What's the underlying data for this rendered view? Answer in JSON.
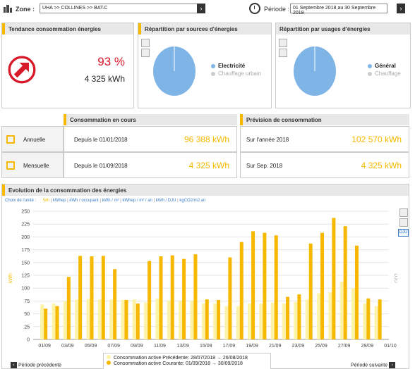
{
  "topbar": {
    "zone_label": "Zone :",
    "zone_value": "UHA >> COLLINES >> BAT.C",
    "period_label": "Période :",
    "period_value": "01 Septembre 2018 au 30 Septembre 2018",
    "go": "›"
  },
  "trend": {
    "title": "Tendance consommation énergies",
    "percent": "93 %",
    "kwh": "4 325 kWh"
  },
  "sources": {
    "title": "Répartition par sources d'énergies",
    "legend": [
      "Electricité",
      "Chauffage urbain"
    ]
  },
  "usages": {
    "title": "Répartition par usages d'énergies",
    "legend": [
      "Général",
      "Chauffage"
    ]
  },
  "current": {
    "title": "Consommation en cours",
    "rows": [
      {
        "label": "Annuelle",
        "since": "Depuis le 01/01/2018",
        "value": "96 388 kWh"
      },
      {
        "label": "Mensuelle",
        "since": "Depuis le 01/09/2018",
        "value": "4 325 kWh"
      }
    ]
  },
  "forecast": {
    "title": "Prévision de consommation",
    "rows": [
      {
        "since": "Sur l'année 2018",
        "value": "102 570 kWh"
      },
      {
        "since": "Sur Sep. 2018",
        "value": "4 325 kWh"
      }
    ]
  },
  "evolution": {
    "title": "Evolution de la consommation des énergies",
    "unit_prompt": "Choix de l'unité :",
    "units": [
      "Wh",
      "kWhep",
      "kWh / occupant",
      "kWh / m²",
      "kWhep / m² / an",
      "kWh / DJU",
      "kgCO2/m2.an"
    ],
    "dju_btn": "DJU",
    "prev": "Période précédente",
    "next": "Période suivante",
    "legend": [
      "Consommation active Précédente: 28/07/2018 → 26/08/2018",
      "Consommation active Courante: 01/09/2018 → 30/09/2018"
    ]
  },
  "colors": {
    "accent": "#f6b800",
    "pale": "#fdf3a8",
    "trend_red": "#d8192a",
    "pie_blue": "#7fb4e6",
    "link": "#3a7bc8"
  },
  "chart_data": {
    "type": "bar",
    "ylabel": "kWh",
    "y2label": "DJU",
    "ylim": [
      0,
      250
    ],
    "yticks": [
      0,
      25,
      50,
      75,
      100,
      125,
      150,
      175,
      200,
      225,
      250
    ],
    "xticks": [
      "01/09",
      "03/09",
      "05/09",
      "07/09",
      "09/09",
      "11/09",
      "13/09",
      "15/09",
      "17/09",
      "19/09",
      "21/09",
      "23/09",
      "25/09",
      "27/09",
      "29/09",
      "01/10"
    ],
    "categories": [
      "01/09",
      "02/09",
      "03/09",
      "04/09",
      "05/09",
      "06/09",
      "07/09",
      "08/09",
      "09/09",
      "10/09",
      "11/09",
      "12/09",
      "13/09",
      "14/09",
      "15/09",
      "16/09",
      "17/09",
      "18/09",
      "19/09",
      "20/09",
      "21/09",
      "22/09",
      "23/09",
      "24/09",
      "25/09",
      "26/09",
      "27/09",
      "28/09",
      "29/09",
      "30/09"
    ],
    "series": [
      {
        "name": "Consommation active Précédente: 28/07/2018 → 26/08/2018",
        "values": [
          68,
          70,
          75,
          78,
          79,
          78,
          78,
          77,
          78,
          72,
          80,
          76,
          75,
          75,
          70,
          70,
          65,
          65,
          70,
          70,
          72,
          70,
          73,
          78,
          90,
          92,
          113,
          100,
          70,
          65
        ]
      },
      {
        "name": "Consommation active Courante: 01/09/2018 → 30/09/2018",
        "values": [
          60,
          65,
          122,
          163,
          162,
          163,
          137,
          77,
          70,
          153,
          162,
          164,
          157,
          166,
          78,
          77,
          160,
          190,
          211,
          208,
          203,
          83,
          88,
          187,
          208,
          237,
          221,
          183,
          80,
          78
        ]
      }
    ]
  }
}
